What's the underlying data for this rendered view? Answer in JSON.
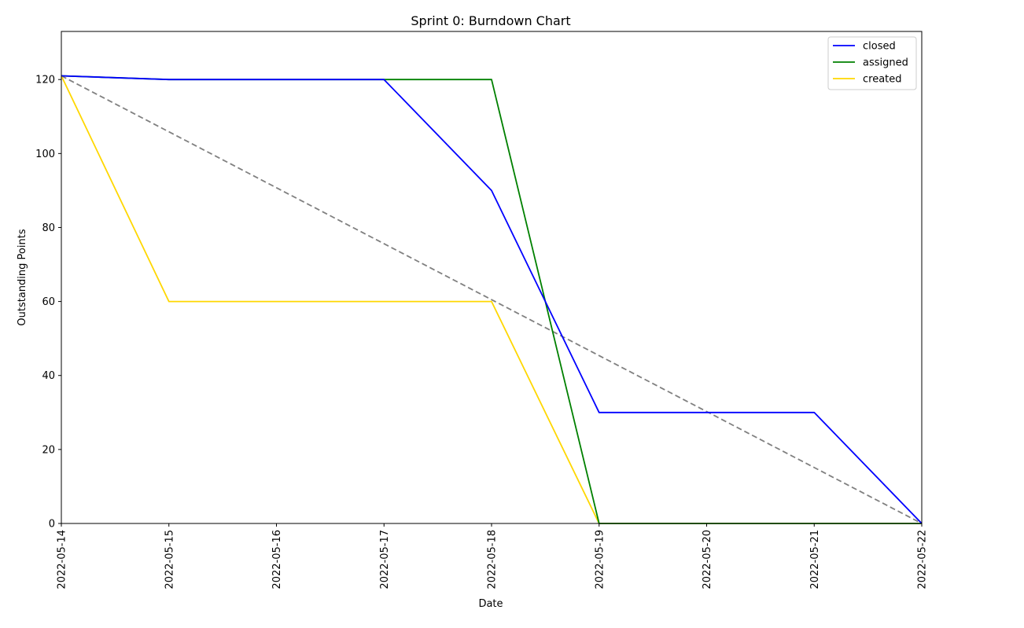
{
  "chart_data": {
    "type": "line",
    "title": "Sprint 0: Burndown Chart",
    "xlabel": "Date",
    "ylabel": "Outstanding Points",
    "categories": [
      "2022-05-14",
      "2022-05-15",
      "2022-05-16",
      "2022-05-17",
      "2022-05-18",
      "2022-05-19",
      "2022-05-20",
      "2022-05-21",
      "2022-05-22"
    ],
    "ylim": [
      0,
      133
    ],
    "yticks": [
      0,
      20,
      40,
      60,
      80,
      100,
      120
    ],
    "grid": false,
    "legend_position": "top-right",
    "series": [
      {
        "name": "closed",
        "color": "#0000ff",
        "values": [
          121,
          120,
          null,
          120,
          90,
          30,
          30,
          30,
          0
        ]
      },
      {
        "name": "assigned",
        "color": "#008000",
        "values": [
          121,
          120,
          null,
          120,
          120,
          0,
          0,
          0,
          0
        ]
      },
      {
        "name": "created",
        "color": "#ffd700",
        "values": [
          121,
          60,
          null,
          60,
          60,
          0,
          0,
          0,
          0
        ]
      }
    ],
    "ideal": {
      "color": "#808080",
      "style": "dashed",
      "values": [
        121,
        0
      ]
    }
  }
}
